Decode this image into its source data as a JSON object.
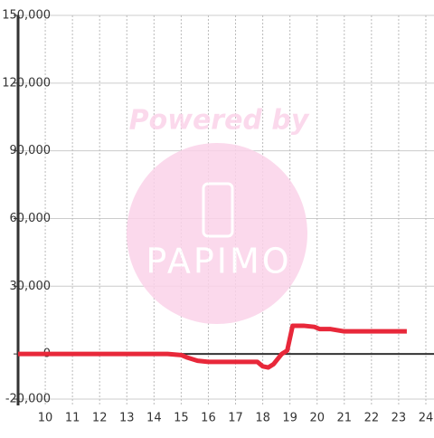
{
  "chart_data": {
    "type": "line",
    "x": [
      9,
      14.5,
      15,
      15.2,
      15.6,
      16,
      17,
      17.8,
      18,
      18.2,
      18.4,
      18.7,
      18.9,
      19.1,
      19.5,
      19.9,
      20.1,
      20.5,
      21,
      23.3
    ],
    "series": [
      {
        "color": "#e8283a",
        "values": [
          0,
          0,
          -500,
          -1500,
          -3000,
          -3500,
          -3500,
          -3500,
          -5500,
          -6000,
          -4500,
          0,
          1500,
          12500,
          12500,
          12000,
          11000,
          11000,
          10000,
          10000
        ]
      }
    ],
    "xlim": [
      9,
      24.3
    ],
    "ylim": [
      -20000,
      150000
    ],
    "xticks": [
      10,
      11,
      12,
      13,
      14,
      15,
      16,
      17,
      18,
      19,
      20,
      21,
      22,
      23,
      24
    ],
    "yticks": [
      {
        "value": -20000,
        "label": "-20,000"
      },
      0,
      {
        "value": 30000,
        "label": "30,000"
      },
      {
        "value": 60000,
        "label": "60,000"
      },
      {
        "value": 90000,
        "label": "90,000"
      },
      {
        "value": 120000,
        "label": "120,000"
      },
      {
        "value": 150000,
        "label": "150,000"
      }
    ],
    "grid": true,
    "watermark": {
      "line1": "Powered by",
      "line2": "PAPIMO"
    }
  }
}
